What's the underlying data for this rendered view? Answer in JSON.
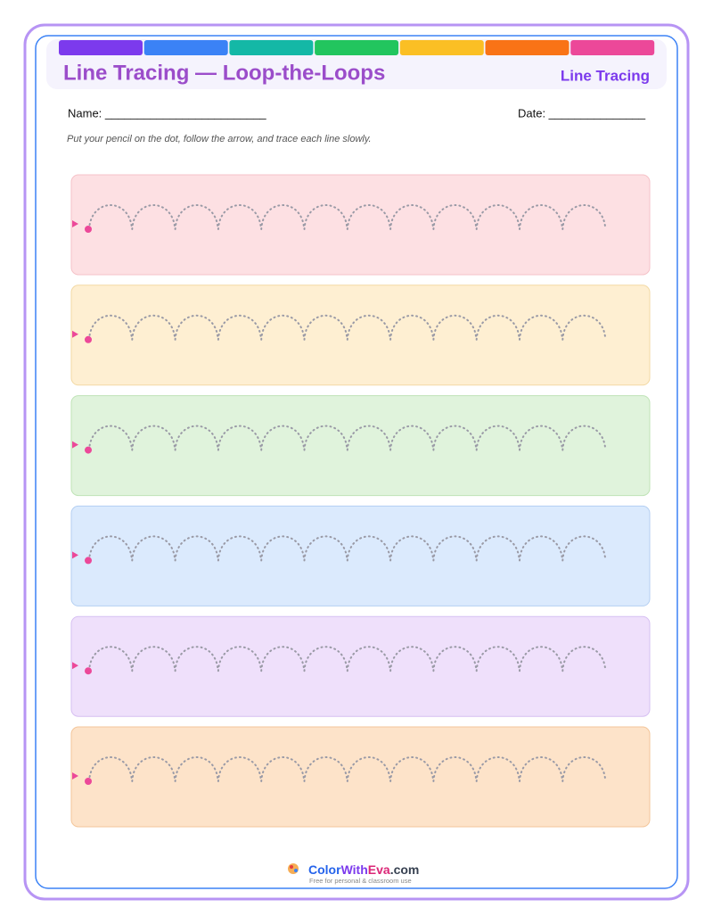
{
  "header": {
    "title": "Line Tracing — Loop-the-Loops",
    "tag": "Line Tracing"
  },
  "fields": {
    "name": "Name: _________________________",
    "date": "Date: _______________"
  },
  "instruction": "Put your pencil on the dot, follow the arrow, and trace each line slowly.",
  "footer": {
    "brand": [
      "Color",
      "With",
      "Eva",
      ".com"
    ],
    "tagline": "Free for personal & classroom use"
  }
}
